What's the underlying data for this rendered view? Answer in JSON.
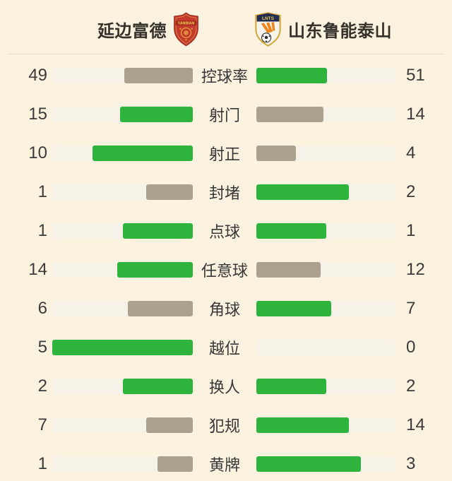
{
  "header": {
    "home": {
      "name": "延边富德",
      "crest_text": "YANBIAN"
    },
    "away": {
      "name": "山东鲁能泰山",
      "crest_text": "LNTS"
    }
  },
  "colors": {
    "background": "#fbf2e0",
    "bar_track": "#f7f2e8",
    "leader_bar_green": "#2eb43d",
    "trailing_bar_gray": "#aaa28e",
    "divider": "#e9e0cc",
    "text": "#3b3b3b",
    "home_crest_red": "#c43b2b",
    "away_crest_gold": "#d6a83a"
  },
  "chart_data": {
    "type": "bar",
    "orientation": "horizontal",
    "layout": "paired-bars-with-center-labels, bars anchored at center, fill = value/(left+right)",
    "legend_position": "top (team headers)",
    "grid": false,
    "categories": [
      "控球率",
      "射门",
      "射正",
      "封堵",
      "点球",
      "任意球",
      "角球",
      "越位",
      "换人",
      "犯规",
      "黄牌"
    ],
    "series": [
      {
        "name": "延边富德",
        "side": "left",
        "values": [
          49,
          15,
          10,
          1,
          1,
          14,
          6,
          5,
          2,
          7,
          1
        ]
      },
      {
        "name": "山东鲁能泰山",
        "side": "right",
        "values": [
          51,
          14,
          4,
          2,
          1,
          12,
          7,
          0,
          2,
          14,
          3
        ]
      }
    ],
    "color_rule": "higher value bar is green, lower value bar is gray, tied bars both green"
  }
}
